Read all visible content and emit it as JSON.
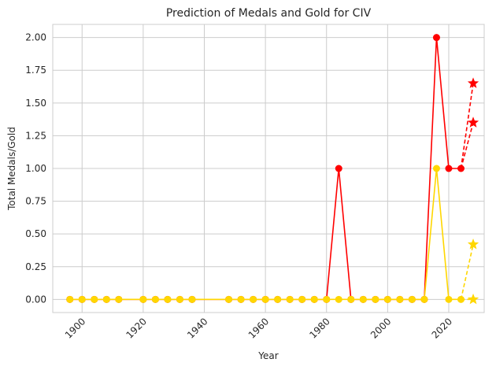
{
  "chart_data": {
    "type": "line",
    "title": "Prediction of Medals and Gold for CIV",
    "xlabel": "Year",
    "ylabel": "Total Medals/Gold",
    "xlim": [
      1890.4,
      2031.6
    ],
    "ylim": [
      -0.1,
      2.1
    ],
    "x_ticks": [
      1900,
      1920,
      1940,
      1960,
      1980,
      2000,
      2020
    ],
    "y_ticks": [
      0.0,
      0.25,
      0.5,
      0.75,
      1.0,
      1.25,
      1.5,
      1.75,
      2.0
    ],
    "y_tick_labels": [
      "0.00",
      "0.25",
      "0.50",
      "0.75",
      "1.00",
      "1.25",
      "1.50",
      "1.75",
      "2.00"
    ],
    "grid": true,
    "series": [
      {
        "color": "#ff0000",
        "style": "solid",
        "marker": "circle",
        "x": [
          1896,
          1900,
          1904,
          1908,
          1912,
          1920,
          1924,
          1928,
          1932,
          1936,
          1948,
          1952,
          1956,
          1960,
          1964,
          1968,
          1972,
          1976,
          1980,
          1984,
          1988,
          1992,
          1996,
          2000,
          2004,
          2008,
          2012,
          2016,
          2020,
          2024
        ],
        "y": [
          0,
          0,
          0,
          0,
          0,
          0,
          0,
          0,
          0,
          0,
          0,
          0,
          0,
          0,
          0,
          0,
          0,
          0,
          0,
          1,
          0,
          0,
          0,
          0,
          0,
          0,
          0,
          2,
          1,
          1
        ]
      },
      {
        "color": "#ffd700",
        "style": "solid",
        "marker": "circle",
        "x": [
          1896,
          1900,
          1904,
          1908,
          1912,
          1920,
          1924,
          1928,
          1932,
          1936,
          1948,
          1952,
          1956,
          1960,
          1964,
          1968,
          1972,
          1976,
          1980,
          1984,
          1988,
          1992,
          1996,
          2000,
          2004,
          2008,
          2012,
          2016,
          2020,
          2024
        ],
        "y": [
          0,
          0,
          0,
          0,
          0,
          0,
          0,
          0,
          0,
          0,
          0,
          0,
          0,
          0,
          0,
          0,
          0,
          0,
          0,
          0,
          0,
          0,
          0,
          0,
          0,
          0,
          0,
          1,
          0,
          0
        ]
      },
      {
        "color": "#ff0000",
        "style": "dashed",
        "marker": "star",
        "x": [
          2024,
          2028
        ],
        "y": [
          1,
          1.65
        ]
      },
      {
        "color": "#ff0000",
        "style": "dashed",
        "marker": "star",
        "x": [
          2024,
          2028
        ],
        "y": [
          1,
          1.35
        ]
      },
      {
        "color": "#ffd700",
        "style": "dashed",
        "marker": "star",
        "x": [
          2024,
          2028
        ],
        "y": [
          0,
          0.42
        ]
      },
      {
        "color": "#ffd700",
        "style": "dashed",
        "marker": "star",
        "x": [
          2024,
          2028
        ],
        "y": [
          0,
          0
        ]
      }
    ]
  }
}
